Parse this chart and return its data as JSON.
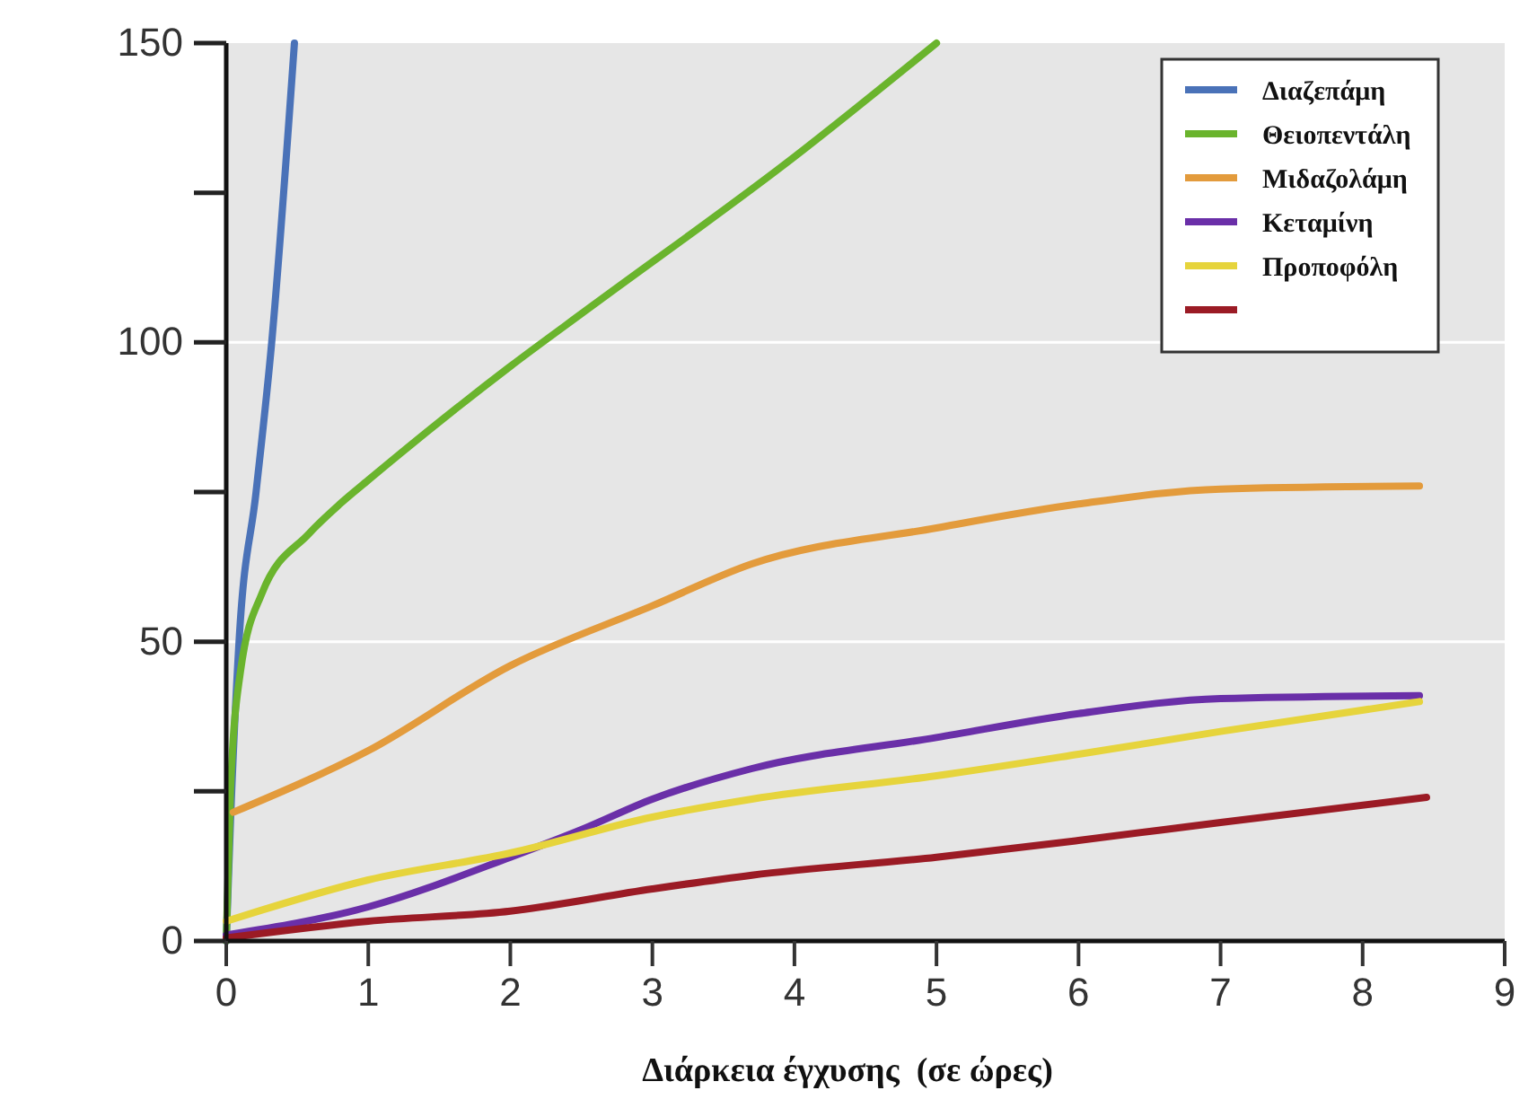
{
  "chart_data": {
    "type": "line",
    "xlabel": "Διάρκεια έγχυσης  (σε ώρες)",
    "xlim": [
      0,
      9
    ],
    "xticks": [
      0,
      1,
      2,
      3,
      4,
      5,
      6,
      7,
      8,
      9
    ],
    "ylim": [
      0,
      150
    ],
    "yticks": [
      0,
      50,
      100,
      150
    ],
    "grid": "y",
    "legend": "top right",
    "marker": "none",
    "line_style": "solid",
    "series": [
      {
        "name": "Διαζεπάμη",
        "color": "#4a72b8",
        "x": [
          0,
          0.03,
          0.09,
          0.21,
          0.32,
          0.48
        ],
        "values": [
          0,
          20,
          50,
          75,
          100,
          150
        ]
      },
      {
        "name": "Θειοπεντάλη",
        "color": "#6ab42d",
        "x": [
          0,
          0.03,
          0.1,
          0.25,
          0.58,
          0.8,
          1,
          2,
          2.57,
          4,
          5
        ],
        "values": [
          0,
          25,
          45,
          58,
          68,
          73,
          77,
          96,
          106,
          131,
          150
        ]
      },
      {
        "name": "Μιδαζολάμη",
        "color": "#e39b3c",
        "x": [
          0.05,
          1,
          2,
          3,
          3.7,
          5,
          6,
          7,
          8.4
        ],
        "values": [
          21.5,
          31.8,
          46,
          56,
          63,
          69,
          73,
          75.5,
          76
        ]
      },
      {
        "name": "Κεταμίνη",
        "color": "#6a2fa8",
        "x": [
          0,
          1,
          2,
          2.5,
          3,
          3.7,
          5,
          6,
          7,
          8.4
        ],
        "values": [
          1,
          5.7,
          14,
          18.6,
          23.7,
          28.8,
          34,
          38,
          40.5,
          41
        ]
      },
      {
        "name": "Προποφόλη",
        "color": "#e6d43c",
        "x": [
          0,
          1,
          2,
          3,
          3.7,
          5,
          6,
          7,
          8.4
        ],
        "values": [
          3.3,
          10.2,
          14.7,
          20.7,
          23.7,
          27.6,
          31.2,
          35,
          40
        ]
      },
      {
        "color": "#9b1b25",
        "x": [
          0,
          1,
          2,
          3,
          3.7,
          5,
          6,
          7,
          8.45
        ],
        "values": [
          0.5,
          3.3,
          5,
          8.7,
          11,
          14,
          16.8,
          19.8,
          24
        ]
      }
    ]
  }
}
